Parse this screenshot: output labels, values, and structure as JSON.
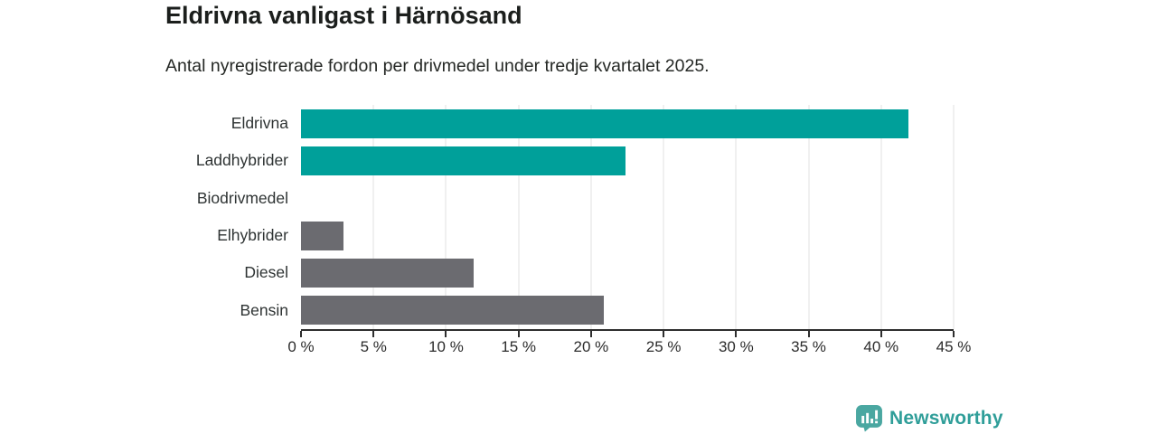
{
  "header": {
    "title": "Eldrivna vanligast i Härnösand",
    "subtitle": "Antal nyregistrerade fordon per drivmedel under tredje kvartalet 2025."
  },
  "chart_data": {
    "type": "bar",
    "orientation": "horizontal",
    "title": "Eldrivna vanligast i Härnösand",
    "subtitle": "Antal nyregistrerade fordon per drivmedel under tredje kvartalet 2025.",
    "categories": [
      "Eldrivna",
      "Laddhybrider",
      "Biodrivmedel",
      "Elhybrider",
      "Diesel",
      "Bensin"
    ],
    "values": [
      41.9,
      22.4,
      0,
      2.9,
      11.9,
      20.9
    ],
    "value_unit": "%",
    "bar_colors": [
      "#00a09a",
      "#00a09a",
      "#6b6b70",
      "#6b6b70",
      "#6b6b70",
      "#6b6b70"
    ],
    "xlim": [
      0,
      45
    ],
    "x_ticks": [
      0,
      5,
      10,
      15,
      20,
      25,
      30,
      35,
      40,
      45
    ],
    "x_tick_labels": [
      "0 %",
      "5 %",
      "10 %",
      "15 %",
      "20 %",
      "25 %",
      "30 %",
      "35 %",
      "40 %",
      "45 %"
    ],
    "grid": true,
    "legend": false,
    "colors": {
      "highlight_bar": "#00a09a",
      "default_bar": "#6b6b70",
      "gridline": "#e2e2e2",
      "axis": "#2e2e2e"
    }
  },
  "branding": {
    "logo_text": "Newsworthy",
    "logo_icon": "bar-chart-pin-icon",
    "logo_text_color": "#2f9e99",
    "logo_icon_color": "#4aa7a1"
  }
}
